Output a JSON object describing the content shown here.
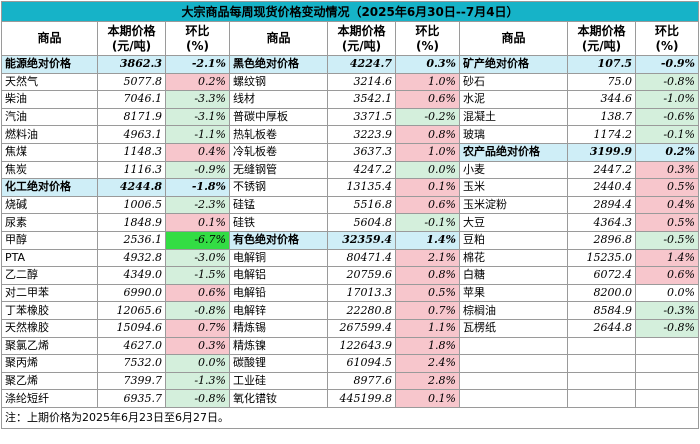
{
  "title": "大宗商品每周现货价格变动情况（2025年6月30日--7月4日）",
  "headers": [
    {
      "name": "商品",
      "price": "本期价格\n(元/吨)",
      "change": "环比\n(%)"
    },
    {
      "name": "商品",
      "price": "本期价格\n(元/吨)",
      "change": "环比\n(%)"
    },
    {
      "name": "商品",
      "price": "本期价格\n(元/吨)",
      "change": "环比\n(%)"
    }
  ],
  "rows": [
    [
      {
        "name": "能源绝对价格",
        "price": "3862.3",
        "change": "-2.1%",
        "kind": "cat",
        "dir": "cat"
      },
      {
        "name": "黑色绝对价格",
        "price": "4224.7",
        "change": "0.3%",
        "kind": "cat",
        "dir": "cat"
      },
      {
        "name": "矿产绝对价格",
        "price": "107.5",
        "change": "-0.9%",
        "kind": "cat",
        "dir": "cat"
      }
    ],
    [
      {
        "name": "天然气",
        "price": "5077.8",
        "change": "0.2%",
        "dir": "up"
      },
      {
        "name": "螺纹钢",
        "price": "3214.6",
        "change": "1.0%",
        "dir": "up"
      },
      {
        "name": "砂石",
        "price": "75.0",
        "change": "-0.8%",
        "dir": "down"
      }
    ],
    [
      {
        "name": "柴油",
        "price": "7046.1",
        "change": "-3.3%",
        "dir": "down"
      },
      {
        "name": "线材",
        "price": "3542.1",
        "change": "0.6%",
        "dir": "up"
      },
      {
        "name": "水泥",
        "price": "344.6",
        "change": "-1.0%",
        "dir": "down"
      }
    ],
    [
      {
        "name": "汽油",
        "price": "8171.9",
        "change": "-3.1%",
        "dir": "down"
      },
      {
        "name": "普碳中厚板",
        "price": "3371.5",
        "change": "-0.2%",
        "dir": "down"
      },
      {
        "name": "混凝土",
        "price": "138.7",
        "change": "-0.6%",
        "dir": "down"
      }
    ],
    [
      {
        "name": "燃料油",
        "price": "4963.1",
        "change": "-1.1%",
        "dir": "down"
      },
      {
        "name": "热轧板卷",
        "price": "3223.9",
        "change": "0.8%",
        "dir": "up"
      },
      {
        "name": "玻璃",
        "price": "1174.2",
        "change": "-0.1%",
        "dir": "down"
      }
    ],
    [
      {
        "name": "焦煤",
        "price": "1148.3",
        "change": "0.4%",
        "dir": "up"
      },
      {
        "name": "冷轧板卷",
        "price": "3637.3",
        "change": "1.0%",
        "dir": "up"
      },
      {
        "name": "农产品绝对价格",
        "price": "3199.9",
        "change": "0.2%",
        "kind": "cat",
        "dir": "cat"
      }
    ],
    [
      {
        "name": "焦炭",
        "price": "1116.3",
        "change": "-0.9%",
        "dir": "down"
      },
      {
        "name": "无缝钢管",
        "price": "4247.2",
        "change": "0.0%",
        "dir": "down"
      },
      {
        "name": "小麦",
        "price": "2447.2",
        "change": "0.3%",
        "dir": "up"
      }
    ],
    [
      {
        "name": "化工绝对价格",
        "price": "4244.8",
        "change": "-1.8%",
        "kind": "cat",
        "dir": "cat"
      },
      {
        "name": "不锈钢",
        "price": "13135.4",
        "change": "0.1%",
        "dir": "up"
      },
      {
        "name": "玉米",
        "price": "2440.4",
        "change": "0.5%",
        "dir": "up"
      }
    ],
    [
      {
        "name": "烧碱",
        "price": "1006.5",
        "change": "-2.3%",
        "dir": "down"
      },
      {
        "name": "硅锰",
        "price": "5516.8",
        "change": "0.6%",
        "dir": "up"
      },
      {
        "name": "玉米淀粉",
        "price": "2894.4",
        "change": "0.4%",
        "dir": "up"
      }
    ],
    [
      {
        "name": "尿素",
        "price": "1848.9",
        "change": "0.1%",
        "dir": "up"
      },
      {
        "name": "硅铁",
        "price": "5604.8",
        "change": "-0.1%",
        "dir": "down"
      },
      {
        "name": "大豆",
        "price": "4364.3",
        "change": "0.5%",
        "dir": "up"
      }
    ],
    [
      {
        "name": "甲醇",
        "price": "2536.1",
        "change": "-6.7%",
        "dir": "strong-down"
      },
      {
        "name": "有色绝对价格",
        "price": "32359.4",
        "change": "1.4%",
        "kind": "cat",
        "dir": "cat"
      },
      {
        "name": "豆粕",
        "price": "2896.8",
        "change": "-0.5%",
        "dir": "down"
      }
    ],
    [
      {
        "name": "PTA",
        "price": "4932.8",
        "change": "-3.0%",
        "dir": "down"
      },
      {
        "name": "电解铜",
        "price": "80471.4",
        "change": "2.1%",
        "dir": "up"
      },
      {
        "name": "棉花",
        "price": "15235.0",
        "change": "1.4%",
        "dir": "up"
      }
    ],
    [
      {
        "name": "乙二醇",
        "price": "4349.0",
        "change": "-1.5%",
        "dir": "down"
      },
      {
        "name": "电解铝",
        "price": "20759.6",
        "change": "0.8%",
        "dir": "up"
      },
      {
        "name": "白糖",
        "price": "6072.4",
        "change": "0.6%",
        "dir": "up"
      }
    ],
    [
      {
        "name": "对二甲苯",
        "price": "6990.0",
        "change": "0.6%",
        "dir": "up"
      },
      {
        "name": "电解铅",
        "price": "17013.3",
        "change": "0.5%",
        "dir": "up"
      },
      {
        "name": "苹果",
        "price": "8200.0",
        "change": "0.0%",
        "dir": "neutral"
      }
    ],
    [
      {
        "name": "丁苯橡胶",
        "price": "12065.6",
        "change": "-0.8%",
        "dir": "down"
      },
      {
        "name": "电解锌",
        "price": "22280.8",
        "change": "0.7%",
        "dir": "up"
      },
      {
        "name": "棕榈油",
        "price": "8584.9",
        "change": "-0.3%",
        "dir": "down"
      }
    ],
    [
      {
        "name": "天然橡胶",
        "price": "15094.6",
        "change": "0.7%",
        "dir": "up"
      },
      {
        "name": "精炼锡",
        "price": "267599.4",
        "change": "1.1%",
        "dir": "up"
      },
      {
        "name": "瓦楞纸",
        "price": "2644.8",
        "change": "-0.8%",
        "dir": "down"
      }
    ],
    [
      {
        "name": "聚氯乙烯",
        "price": "4627.0",
        "change": "0.3%",
        "dir": "up"
      },
      {
        "name": "精炼镍",
        "price": "122643.9",
        "change": "1.8%",
        "dir": "up"
      },
      {
        "name": "",
        "price": "",
        "change": "",
        "dir": "empty"
      }
    ],
    [
      {
        "name": "聚丙烯",
        "price": "7532.0",
        "change": "0.0%",
        "dir": "down"
      },
      {
        "name": "碳酸锂",
        "price": "61094.5",
        "change": "2.4%",
        "dir": "up"
      },
      {
        "name": "",
        "price": "",
        "change": "",
        "dir": "empty"
      }
    ],
    [
      {
        "name": "聚乙烯",
        "price": "7399.7",
        "change": "-1.3%",
        "dir": "down"
      },
      {
        "name": "工业硅",
        "price": "8977.6",
        "change": "2.8%",
        "dir": "up"
      },
      {
        "name": "",
        "price": "",
        "change": "",
        "dir": "empty"
      }
    ],
    [
      {
        "name": "涤纶短纤",
        "price": "6935.7",
        "change": "-0.8%",
        "dir": "down"
      },
      {
        "name": "氧化镨钕",
        "price": "445199.8",
        "change": "0.1%",
        "dir": "up"
      },
      {
        "name": "",
        "price": "",
        "change": "",
        "dir": "empty"
      }
    ]
  ],
  "note": "注：上期价格为2025年6月23日至6月27日。"
}
